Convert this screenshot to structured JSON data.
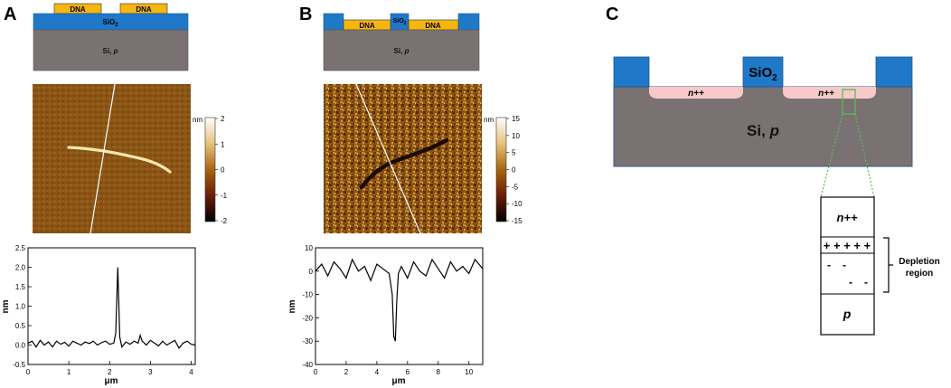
{
  "panels": {
    "a": {
      "letter": "A",
      "schematic": {
        "dna_left": "DNA",
        "dna_right": "DNA",
        "sio2": "SiO",
        "sio2_sub": "2",
        "si": "Si, ",
        "si_type": "p"
      },
      "colorbar": {
        "unit": "nm",
        "ticks": [
          "2",
          "1",
          "0",
          "-1",
          "-2"
        ]
      }
    },
    "b": {
      "letter": "B",
      "schematic": {
        "dna_left": "DNA",
        "dna_right": "DNA",
        "sio2": "SiO",
        "sio2_sub": "2",
        "si": "Si, ",
        "si_type": "p"
      },
      "colorbar": {
        "unit": "nm",
        "ticks": [
          "15",
          "10",
          "5",
          "0",
          "-5",
          "-10",
          "-15"
        ]
      }
    },
    "c": {
      "letter": "C",
      "sio2": "SiO",
      "sio2_sub": "2",
      "n_left": "n++",
      "n_right": "n++",
      "si": "Si, ",
      "si_type": "p",
      "zoom": {
        "n_label": "n++",
        "plus_signs": "+ + + + +",
        "minus_signs": [
          "-",
          "-",
          "-",
          "-"
        ],
        "p_label": "p",
        "depletion_label_line1": "Depletion",
        "depletion_label_line2": "region"
      }
    }
  },
  "colors": {
    "dna": "#f4b60f",
    "sio2": "#1f78c8",
    "si": "#7a7272",
    "n_doped": "#f7c9c9",
    "zoom_box": "#5cb85c",
    "afm_a_bg": "#8a5514",
    "afm_b_bg": "#8a5514"
  },
  "chart_data": [
    {
      "type": "line",
      "panel": "A",
      "xlabel": "μm",
      "ylabel": "nm",
      "xlim": [
        0,
        4.1
      ],
      "ylim": [
        -0.5,
        2.5
      ],
      "xticks": [
        "0",
        "1",
        "2",
        "3",
        "4"
      ],
      "yticks": [
        "-0.5",
        "0.0",
        "0.5",
        "1.0",
        "1.5",
        "2.0",
        "2.5"
      ],
      "x": [
        0,
        0.1,
        0.2,
        0.3,
        0.4,
        0.5,
        0.6,
        0.7,
        0.8,
        0.9,
        1.0,
        1.1,
        1.2,
        1.3,
        1.4,
        1.5,
        1.6,
        1.7,
        1.8,
        1.9,
        2.0,
        2.1,
        2.15,
        2.2,
        2.25,
        2.3,
        2.4,
        2.5,
        2.6,
        2.7,
        2.75,
        2.8,
        2.9,
        3.0,
        3.1,
        3.2,
        3.3,
        3.4,
        3.5,
        3.6,
        3.7,
        3.8,
        3.9,
        4.0,
        4.1
      ],
      "y": [
        0.05,
        0.1,
        -0.05,
        0.12,
        0.0,
        0.08,
        -0.05,
        0.1,
        0.02,
        0.07,
        -0.03,
        0.1,
        0.05,
        0.0,
        0.08,
        0.04,
        0.1,
        0.0,
        0.06,
        0.1,
        0.02,
        0.05,
        0.3,
        2.0,
        0.2,
        -0.05,
        0.08,
        0.02,
        0.1,
        0.05,
        0.25,
        0.1,
        0.0,
        0.12,
        0.05,
        -0.02,
        0.1,
        0.0,
        0.06,
        0.12,
        -0.08,
        0.05,
        0.1,
        0.02,
        0.0
      ]
    },
    {
      "type": "line",
      "panel": "B",
      "xlabel": "μm",
      "ylabel": "nm",
      "xlim": [
        0,
        10.9
      ],
      "ylim": [
        -40,
        10
      ],
      "xticks": [
        "0",
        "2",
        "4",
        "6",
        "8",
        "10"
      ],
      "yticks": [
        "-40",
        "-30",
        "-20",
        "-10",
        "0",
        "10"
      ],
      "x": [
        0,
        0.4,
        0.8,
        1.2,
        1.6,
        2.0,
        2.4,
        2.8,
        3.2,
        3.6,
        4.0,
        4.4,
        4.8,
        5.0,
        5.1,
        5.2,
        5.3,
        5.4,
        5.6,
        6.0,
        6.4,
        6.8,
        7.2,
        7.6,
        8.0,
        8.4,
        8.8,
        9.2,
        9.6,
        10.0,
        10.4,
        10.9
      ],
      "y": [
        0,
        3,
        -2,
        4,
        1,
        -3,
        5,
        0,
        2,
        -4,
        3,
        1,
        -1,
        -10,
        -28,
        -30,
        -12,
        -1,
        2,
        -3,
        4,
        0,
        -2,
        5,
        1,
        -3,
        4,
        0,
        2,
        -1,
        5,
        1
      ]
    }
  ]
}
